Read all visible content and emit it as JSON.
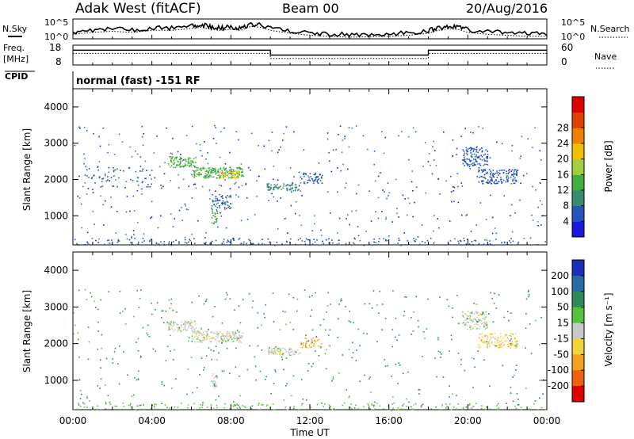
{
  "header": {
    "title": "Adak West (fitACF)",
    "beam": "Beam 00",
    "date": "20/Aug/2016"
  },
  "mode_label": "normal (fast) -151 RF",
  "strip_labels": {
    "nsky": "N.Sky",
    "nsearch": "N.Search",
    "freq_top": "Freq.",
    "freq_unit": "[MHz]",
    "nave": "Nave",
    "cpid": "CPID"
  },
  "chart_data": [
    {
      "type": "line",
      "name": "noise",
      "ylabel": "N.Sky",
      "ylabel_right": "N.Search",
      "yticks_left": [
        "10^5",
        "10^0"
      ],
      "yticks_right": [
        "10^5",
        "10^0"
      ],
      "x": [
        0,
        1,
        2,
        3,
        4,
        5,
        6,
        6.5,
        7,
        7.5,
        8,
        8.5,
        9,
        9.5,
        10,
        11,
        12,
        13,
        14,
        15,
        16,
        17,
        18,
        18.5,
        19,
        19.5,
        20,
        21,
        22,
        23,
        24
      ],
      "series": [
        {
          "values": [
            0.35,
            0.45,
            0.5,
            0.45,
            0.55,
            0.55,
            0.65,
            0.7,
            0.6,
            0.55,
            0.6,
            0.55,
            0.75,
            0.7,
            0.55,
            0.4,
            0.3,
            0.25,
            0.2,
            0.22,
            0.25,
            0.3,
            0.4,
            0.55,
            0.62,
            0.6,
            0.45,
            0.35,
            0.3,
            0.25,
            0.25
          ]
        }
      ]
    },
    {
      "type": "line",
      "name": "frequency-nave",
      "yticks_left": [
        "18",
        "8"
      ],
      "yticks_right": [
        "60",
        "0"
      ],
      "x": [
        0,
        10,
        10,
        18,
        18,
        24
      ],
      "series": [
        {
          "values": [
            15.5,
            15.5,
            13.0,
            13.0,
            15.5,
            15.5
          ]
        },
        {
          "values": [
            35,
            35,
            20,
            20,
            35,
            35
          ]
        }
      ]
    },
    {
      "type": "scatter",
      "name": "power",
      "ylabel": "Slant Range [km]",
      "ylim": [
        200,
        4500
      ],
      "yticks": [
        1000,
        2000,
        3000,
        4000
      ],
      "colorbar": {
        "label": "Power [dB]",
        "ticks": [
          "4",
          "8",
          "12",
          "16",
          "20",
          "24",
          "28"
        ],
        "colors": [
          "#1818e0",
          "#2255c0",
          "#3a8a70",
          "#3fb040",
          "#a0d040",
          "#f0c000",
          "#f08000",
          "#e04000",
          "#dd0000"
        ]
      },
      "bands": [
        {
          "t": [
            4.8,
            6.2
          ],
          "r": [
            2350,
            2650
          ],
          "level": 3,
          "density": 0.55
        },
        {
          "t": [
            6.0,
            8.6
          ],
          "r": [
            2050,
            2350
          ],
          "level": 3,
          "density": 0.6
        },
        {
          "t": [
            7.4,
            8.4
          ],
          "r": [
            2050,
            2250
          ],
          "level": 5,
          "density": 0.5
        },
        {
          "t": [
            7.0,
            7.3
          ],
          "r": [
            800,
            1200
          ],
          "level": 3,
          "density": 0.55
        },
        {
          "t": [
            7.0,
            8.0
          ],
          "r": [
            1200,
            1600
          ],
          "level": 1,
          "density": 0.35
        },
        {
          "t": [
            9.8,
            11.5
          ],
          "r": [
            1700,
            1900
          ],
          "level": 2,
          "density": 0.55
        },
        {
          "t": [
            11.5,
            12.6
          ],
          "r": [
            1900,
            2200
          ],
          "level": 1,
          "density": 0.4
        },
        {
          "t": [
            19.7,
            21.0
          ],
          "r": [
            2400,
            2900
          ],
          "level": 1,
          "density": 0.45
        },
        {
          "t": [
            20.5,
            22.5
          ],
          "r": [
            1900,
            2300
          ],
          "level": 1,
          "density": 0.45
        },
        {
          "t": [
            0.0,
            24.0
          ],
          "r": [
            200,
            400
          ],
          "level": 1,
          "density": 0.12
        },
        {
          "t": [
            0.5,
            4.0
          ],
          "r": [
            1800,
            2400
          ],
          "level": 1,
          "density": 0.08
        },
        {
          "t": [
            0.0,
            24.0
          ],
          "r": [
            400,
            3500
          ],
          "level": 0,
          "density": 0.015
        }
      ]
    },
    {
      "type": "scatter",
      "name": "velocity",
      "ylabel": "Slant Range [km]",
      "xlabel": "Time UT",
      "ylim": [
        200,
        4500
      ],
      "yticks": [
        1000,
        2000,
        3000,
        4000
      ],
      "xticks": [
        "00:00",
        "04:00",
        "08:00",
        "12:00",
        "16:00",
        "20:00",
        "00:00"
      ],
      "colorbar": {
        "label": "Velocity [m s⁻¹]",
        "ticks": [
          "200",
          "100",
          "50",
          "15",
          "-15",
          "-50",
          "-100",
          "-200"
        ],
        "colors": [
          "#1a2ec0",
          "#2a6aa8",
          "#2e8b57",
          "#56c43a",
          "#c8c8c8",
          "#f2d33a",
          "#f4a020",
          "#f06010",
          "#e00000"
        ]
      },
      "bands": [
        {
          "t": [
            4.8,
            6.2
          ],
          "r": [
            2350,
            2650
          ],
          "level": 4,
          "density": 0.55
        },
        {
          "t": [
            6.0,
            8.6
          ],
          "r": [
            2050,
            2350
          ],
          "level": 4,
          "density": 0.6
        },
        {
          "t": [
            7.0,
            7.3
          ],
          "r": [
            800,
            1200
          ],
          "level": 4,
          "density": 0.55
        },
        {
          "t": [
            9.8,
            11.5
          ],
          "r": [
            1700,
            1900
          ],
          "level": 4,
          "density": 0.55
        },
        {
          "t": [
            11.5,
            12.6
          ],
          "r": [
            1900,
            2200
          ],
          "level": 6,
          "density": 0.3
        },
        {
          "t": [
            19.7,
            21.0
          ],
          "r": [
            2400,
            2900
          ],
          "level": 4,
          "density": 0.45
        },
        {
          "t": [
            20.5,
            22.5
          ],
          "r": [
            1900,
            2300
          ],
          "level": 5,
          "density": 0.4
        },
        {
          "t": [
            0.0,
            24.0
          ],
          "r": [
            200,
            400
          ],
          "level": 3,
          "density": 0.12
        },
        {
          "t": [
            0.0,
            24.0
          ],
          "r": [
            400,
            3500
          ],
          "level": 2,
          "density": 0.015
        }
      ]
    }
  ]
}
